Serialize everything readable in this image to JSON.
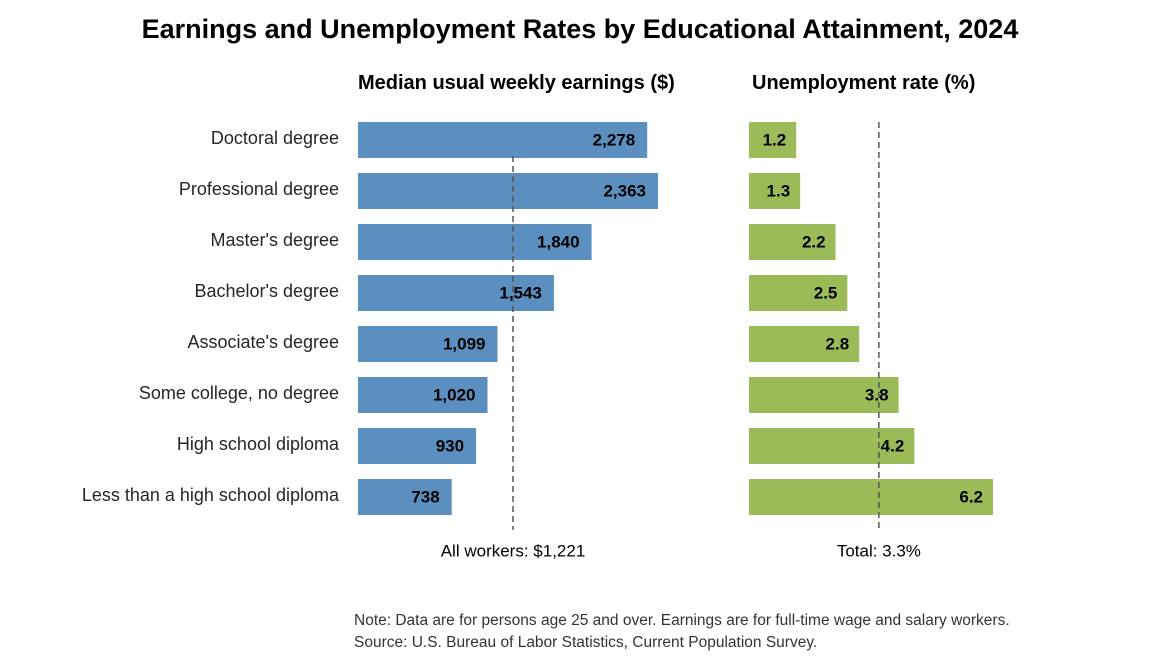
{
  "chart_data": {
    "title": "Earnings and Unemployment Rates by Educational Attainment, 2024",
    "type": "bar",
    "orientation": "horizontal",
    "categories": [
      "Doctoral degree",
      "Professional degree",
      "Master's degree",
      "Bachelor's degree",
      "Associate's degree",
      "Some college, no degree",
      "High school diploma",
      "Less than a high school diploma"
    ],
    "panels": [
      {
        "id": "earnings",
        "title": "Median usual weekly earnings ($)",
        "values": [
          2278,
          2363,
          1840,
          1543,
          1099,
          1020,
          930,
          738
        ],
        "labels": [
          "2,278",
          "2,363",
          "1,840",
          "1,543",
          "1,099",
          "1,020",
          "930",
          "738"
        ],
        "reference_value": 1221,
        "reference_label": "All workers: $1,221",
        "color": "#5b8fc0",
        "xlim": [
          0,
          2500
        ]
      },
      {
        "id": "unemployment",
        "title": "Unemployment rate (%)",
        "values": [
          1.2,
          1.3,
          2.2,
          2.5,
          2.8,
          3.8,
          4.2,
          6.2
        ],
        "labels": [
          "1.2",
          "1.3",
          "2.2",
          "2.5",
          "2.8",
          "3.8",
          "4.2",
          "6.2"
        ],
        "reference_value": 3.3,
        "reference_label": "Total: 3.3%",
        "color": "#9bbb59",
        "xlim": [
          0,
          7
        ]
      }
    ],
    "grid": false,
    "legend": "none"
  },
  "notes": {
    "note": "Note: Data are for persons age 25 and over. Earnings are for full-time wage and salary workers.",
    "source": "Source: U.S. Bureau of Labor Statistics, Current Population Survey."
  }
}
